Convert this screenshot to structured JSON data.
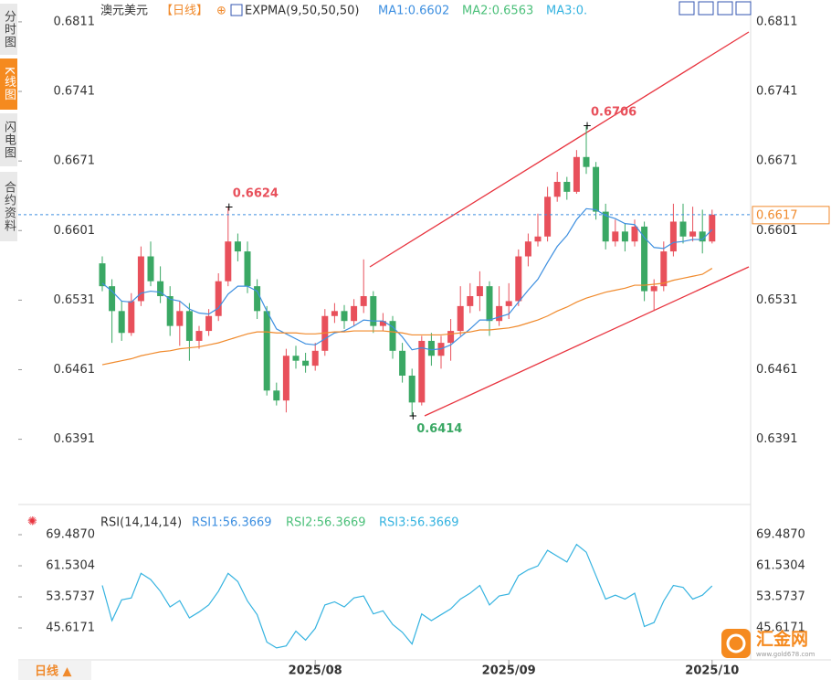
{
  "sidebar": {
    "tabs": [
      "分时图",
      "K线图",
      "闪电图",
      "合约资料"
    ]
  },
  "footer": {
    "period_button": "日线 ▲",
    "watermark": "汇金网",
    "watermark_url": "www.gold678.com"
  },
  "chart_data": [
    {
      "type": "candlestick",
      "title": "澳元美元",
      "period": "【日线】",
      "indicator": "EXPMA(9,50,50,50)",
      "legend": [
        "MA1:0.6602",
        "MA2:0.6563",
        "MA3:0."
      ],
      "categories": [
        null,
        null,
        null,
        null,
        null,
        null,
        null,
        null,
        null,
        null,
        null,
        null,
        null,
        null,
        null,
        null,
        null,
        null,
        null,
        null,
        null,
        null,
        "2025/08",
        null,
        null,
        null,
        null,
        null,
        null,
        null,
        null,
        null,
        null,
        null,
        null,
        null,
        null,
        null,
        null,
        null,
        null,
        null,
        "2025/09",
        null,
        null,
        null,
        null,
        null,
        null,
        null,
        null,
        null,
        null,
        null,
        null,
        null,
        null,
        null,
        null,
        null,
        null,
        null,
        null,
        "2025/10"
      ],
      "open": [
        0.6568,
        0.6545,
        0.652,
        0.6498,
        0.653,
        0.6575,
        0.655,
        0.6535,
        0.6505,
        0.652,
        0.649,
        0.65,
        0.6515,
        0.655,
        0.659,
        0.658,
        0.6545,
        0.652,
        0.644,
        0.643,
        0.6475,
        0.647,
        0.6465,
        0.648,
        0.6515,
        0.652,
        0.651,
        0.6525,
        0.6535,
        0.6505,
        0.651,
        0.648,
        0.6455,
        0.6428,
        0.649,
        0.6475,
        0.6488,
        0.65,
        0.6525,
        0.6535,
        0.6545,
        0.651,
        0.6525,
        0.653,
        0.6575,
        0.659,
        0.6595,
        0.6635,
        0.665,
        0.664,
        0.6675,
        0.6665,
        0.662,
        0.659,
        0.66,
        0.659,
        0.6605,
        0.654,
        0.6545,
        0.658,
        0.661,
        0.6595,
        0.66,
        0.659
      ],
      "close": [
        0.6545,
        0.652,
        0.6498,
        0.653,
        0.6575,
        0.655,
        0.6535,
        0.6505,
        0.652,
        0.649,
        0.65,
        0.6515,
        0.655,
        0.659,
        0.658,
        0.6545,
        0.652,
        0.644,
        0.643,
        0.6475,
        0.647,
        0.6465,
        0.648,
        0.6515,
        0.652,
        0.651,
        0.6525,
        0.6535,
        0.6505,
        0.651,
        0.648,
        0.6455,
        0.6428,
        0.649,
        0.6475,
        0.6488,
        0.65,
        0.6525,
        0.6535,
        0.6545,
        0.651,
        0.6525,
        0.653,
        0.6575,
        0.659,
        0.6595,
        0.6635,
        0.665,
        0.664,
        0.6675,
        0.6665,
        0.662,
        0.659,
        0.66,
        0.659,
        0.6605,
        0.654,
        0.6545,
        0.658,
        0.661,
        0.6595,
        0.66,
        0.659,
        0.6617
      ],
      "high": [
        0.6575,
        0.6552,
        0.653,
        0.6538,
        0.6585,
        0.659,
        0.6565,
        0.6545,
        0.653,
        0.6528,
        0.6505,
        0.6522,
        0.6558,
        0.6624,
        0.6598,
        0.659,
        0.6552,
        0.6525,
        0.6448,
        0.6482,
        0.6485,
        0.6478,
        0.6488,
        0.6522,
        0.6528,
        0.6526,
        0.6532,
        0.6572,
        0.654,
        0.6518,
        0.6515,
        0.6488,
        0.6462,
        0.6495,
        0.6498,
        0.6495,
        0.6512,
        0.6545,
        0.6548,
        0.656,
        0.655,
        0.6545,
        0.6548,
        0.6582,
        0.6598,
        0.6618,
        0.6645,
        0.666,
        0.6655,
        0.6682,
        0.6706,
        0.667,
        0.6628,
        0.6612,
        0.6608,
        0.6612,
        0.661,
        0.6552,
        0.659,
        0.6628,
        0.6628,
        0.6625,
        0.6622,
        0.6622
      ],
      "low": [
        0.654,
        0.6488,
        0.649,
        0.6495,
        0.6525,
        0.6545,
        0.6528,
        0.6495,
        0.6485,
        0.647,
        0.6482,
        0.6495,
        0.651,
        0.6545,
        0.657,
        0.6538,
        0.6512,
        0.6435,
        0.6425,
        0.6418,
        0.6462,
        0.6458,
        0.646,
        0.6475,
        0.6508,
        0.6502,
        0.6505,
        0.6518,
        0.6498,
        0.65,
        0.6472,
        0.6448,
        0.6414,
        0.6425,
        0.6465,
        0.6462,
        0.647,
        0.6495,
        0.6518,
        0.652,
        0.6495,
        0.6505,
        0.6512,
        0.6525,
        0.6565,
        0.6585,
        0.659,
        0.663,
        0.6632,
        0.6638,
        0.6658,
        0.6612,
        0.6582,
        0.6585,
        0.658,
        0.6585,
        0.653,
        0.652,
        0.654,
        0.6575,
        0.6588,
        0.659,
        0.6578,
        0.6588
      ],
      "up_color": "#e8505b",
      "down_color": "#3aa864",
      "series": [
        {
          "name": "MA1",
          "color": "#3d8fe0",
          "values": [
            0.6548,
            0.654,
            0.653,
            0.6529,
            0.6538,
            0.654,
            0.6539,
            0.6532,
            0.653,
            0.6522,
            0.6518,
            0.6517,
            0.6523,
            0.6537,
            0.6545,
            0.6545,
            0.654,
            0.652,
            0.6502,
            0.6497,
            0.6492,
            0.6487,
            0.6486,
            0.6492,
            0.6498,
            0.65,
            0.6505,
            0.6511,
            0.651,
            0.651,
            0.6504,
            0.6494,
            0.6481,
            0.6483,
            0.6481,
            0.6482,
            0.6486,
            0.6494,
            0.6502,
            0.6511,
            0.6511,
            0.6514,
            0.6517,
            0.6529,
            0.6541,
            0.6552,
            0.6569,
            0.6585,
            0.6596,
            0.6612,
            0.6623,
            0.6622,
            0.6616,
            0.6613,
            0.6608,
            0.6607,
            0.6594,
            0.6584,
            0.6583,
            0.6589,
            0.659,
            0.6592,
            0.6592,
            0.6602
          ]
        },
        {
          "name": "MA2",
          "color": "#f08a2c",
          "values": [
            0.6466,
            0.6468,
            0.647,
            0.6472,
            0.6475,
            0.6477,
            0.6479,
            0.648,
            0.6482,
            0.6483,
            0.6484,
            0.6486,
            0.6488,
            0.6491,
            0.6494,
            0.6497,
            0.6499,
            0.6499,
            0.6498,
            0.6498,
            0.6498,
            0.6497,
            0.6497,
            0.6498,
            0.6499,
            0.6499,
            0.65,
            0.65,
            0.65,
            0.65,
            0.6499,
            0.6498,
            0.6496,
            0.6496,
            0.6496,
            0.6496,
            0.6497,
            0.6498,
            0.6499,
            0.6501,
            0.6501,
            0.6502,
            0.6503,
            0.6505,
            0.6508,
            0.6511,
            0.6515,
            0.652,
            0.6524,
            0.6529,
            0.6533,
            0.6536,
            0.6539,
            0.6541,
            0.6543,
            0.6546,
            0.6546,
            0.6547,
            0.6548,
            0.6551,
            0.6553,
            0.6555,
            0.6557,
            0.6563
          ]
        }
      ],
      "ylim": [
        0.6329,
        0.6833
      ],
      "yticks": [
        0.6391,
        0.6461,
        0.6531,
        0.6601,
        0.6671,
        0.6741,
        0.6811
      ]
    },
    {
      "type": "line",
      "title": "RSI(14,14,14)",
      "legend": [
        "RSI1:56.3669",
        "RSI2:56.3669",
        "RSI3:56.3669"
      ],
      "series": [
        {
          "name": "RSI1",
          "color": "#35b3e0",
          "values": [
            56.5,
            47.5,
            52.8,
            53.3,
            59.6,
            58,
            55,
            51,
            52.6,
            48.2,
            49.7,
            51.5,
            55,
            59.6,
            57.5,
            52.5,
            49,
            42,
            40.5,
            41,
            44.8,
            42.5,
            45.5,
            51.5,
            52.3,
            51,
            53.3,
            53.8,
            49.2,
            50,
            46.5,
            44.5,
            41.5,
            49.2,
            47.5,
            49,
            50.5,
            53,
            54.5,
            56.5,
            51.5,
            53.8,
            54.3,
            59,
            60.5,
            61.5,
            65.5,
            64,
            62.5,
            67,
            65,
            59,
            53,
            54,
            53,
            54.5,
            46,
            47,
            52.5,
            56.5,
            56,
            53,
            54,
            56.3669
          ]
        }
      ],
      "ylim": [
        37.9,
        75.34
      ],
      "yticks": [
        45.6171,
        53.5737,
        61.5304,
        {
          "value": 69.487,
          "label": "69.4870"
        }
      ]
    }
  ]
}
